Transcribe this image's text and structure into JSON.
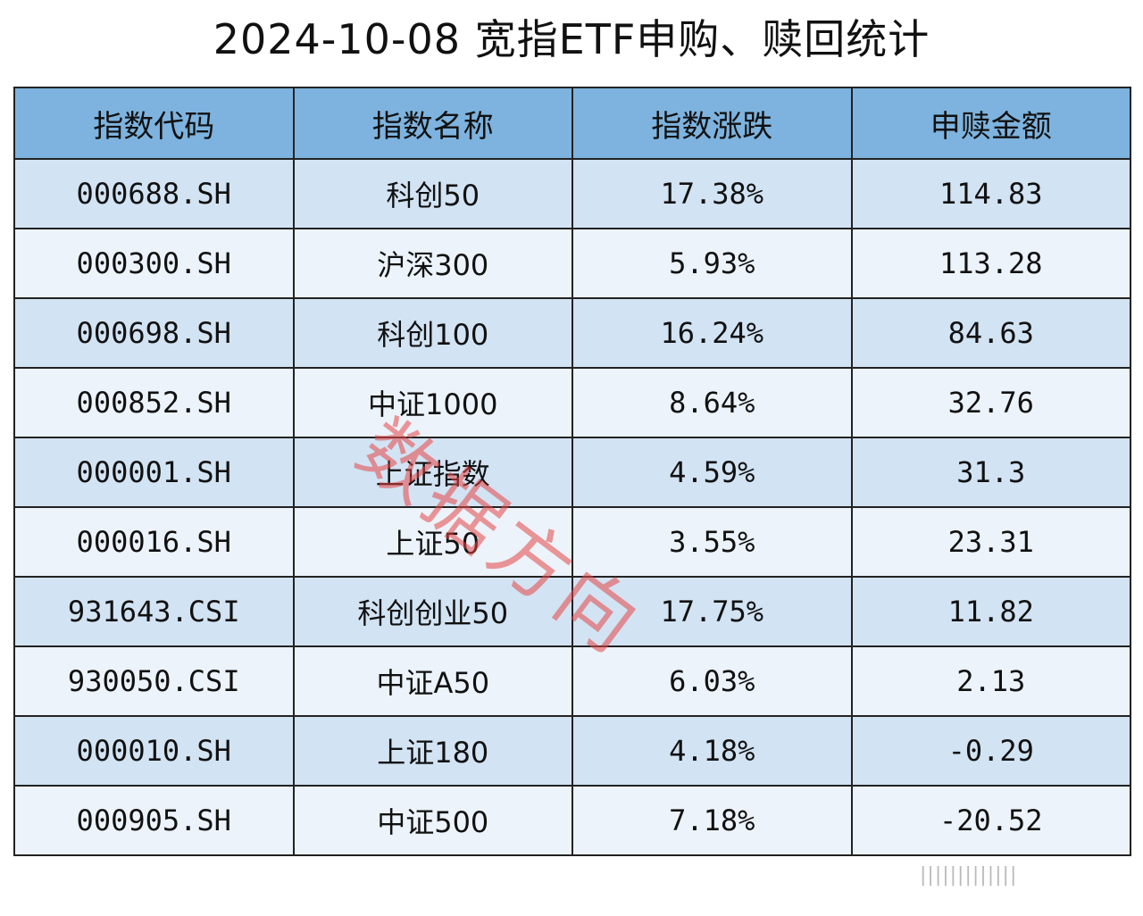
{
  "title": "2024-10-08 宽指ETF申购、赎回统计",
  "table": {
    "headers": [
      "指数代码",
      "指数名称",
      "指数涨跌",
      "申赎金额"
    ],
    "rows": [
      {
        "code": "000688.SH",
        "name": "科创50",
        "change": "17.38%",
        "amount": "114.83"
      },
      {
        "code": "000300.SH",
        "name": "沪深300",
        "change": "5.93%",
        "amount": "113.28"
      },
      {
        "code": "000698.SH",
        "name": "科创100",
        "change": "16.24%",
        "amount": "84.63"
      },
      {
        "code": "000852.SH",
        "name": "中证1000",
        "change": "8.64%",
        "amount": "32.76"
      },
      {
        "code": "000001.SH",
        "name": "上证指数",
        "change": "4.59%",
        "amount": "31.3"
      },
      {
        "code": "000016.SH",
        "name": "上证50",
        "change": "3.55%",
        "amount": "23.31"
      },
      {
        "code": "931643.CSI",
        "name": "科创创业50",
        "change": "17.75%",
        "amount": "11.82"
      },
      {
        "code": "930050.CSI",
        "name": "中证A50",
        "change": "6.03%",
        "amount": "2.13"
      },
      {
        "code": "000010.SH",
        "name": "上证180",
        "change": "4.18%",
        "amount": "-0.29"
      },
      {
        "code": "000905.SH",
        "name": "中证500",
        "change": "7.18%",
        "amount": "-20.52"
      }
    ]
  },
  "watermark": "数据方向",
  "bottom_mark": "|||||||||||||"
}
